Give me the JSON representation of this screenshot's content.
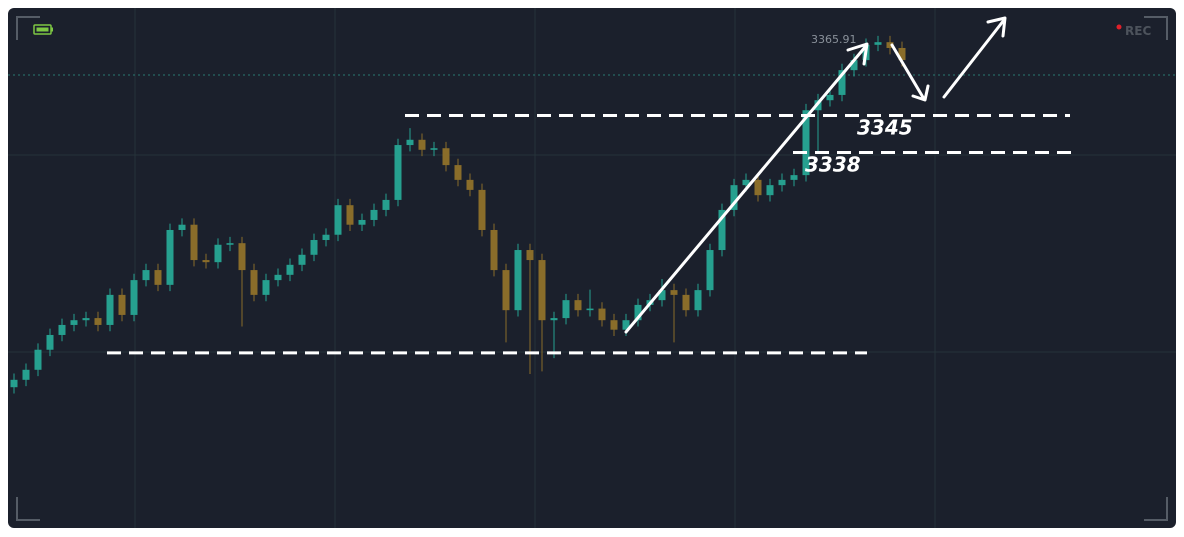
{
  "chart_data": {
    "type": "candlestick",
    "recording_label": "REC",
    "high_label": "3365.91",
    "up_color": "#26a08f",
    "down_color": "#8a6d2a",
    "ylim": [
      3267,
      3365
    ],
    "open": [
      3293.5,
      3294.9,
      3296.8,
      3300.6,
      3303.4,
      3305.3,
      3306.2,
      3306.6,
      3305.3,
      3311.0,
      3307.2,
      3313.8,
      3315.7,
      3312.9,
      3323.3,
      3324.3,
      3317.6,
      3317.2,
      3320.5,
      3320.8,
      3315.7,
      3311.0,
      3313.8,
      3314.8,
      3316.7,
      3318.6,
      3321.4,
      3322.4,
      3328.0,
      3324.3,
      3325.2,
      3327.1,
      3329.0,
      3339.4,
      3340.4,
      3338.5,
      3338.8,
      3335.6,
      3332.8,
      3330.9,
      3323.3,
      3315.7,
      3308.1,
      3319.5,
      3317.6,
      3306.2,
      3306.6,
      3310.0,
      3308.1,
      3308.4,
      3306.2,
      3304.4,
      3306.2,
      3309.1,
      3310.0,
      3311.9,
      3311.0,
      3308.1,
      3311.9,
      3319.5,
      3327.1,
      3331.8,
      3332.8,
      3329.9,
      3331.8,
      3332.8,
      3333.7,
      3346.0,
      3347.9,
      3348.9,
      3353.6,
      3355.5,
      3358.4,
      3358.9,
      3357.8
    ],
    "high": [
      3296.1,
      3298.0,
      3301.8,
      3304.6,
      3306.5,
      3307.4,
      3307.8,
      3307.8,
      3312.2,
      3312.2,
      3315.0,
      3316.9,
      3316.9,
      3324.5,
      3325.5,
      3325.5,
      3318.8,
      3321.7,
      3322.0,
      3322.0,
      3316.9,
      3315.0,
      3316.0,
      3317.9,
      3319.8,
      3322.6,
      3323.6,
      3329.2,
      3329.2,
      3326.4,
      3328.3,
      3330.2,
      3340.6,
      3342.6,
      3341.6,
      3340.0,
      3340.0,
      3336.8,
      3334.0,
      3332.1,
      3324.5,
      3316.9,
      3320.7,
      3320.7,
      3318.8,
      3307.8,
      3311.2,
      3311.2,
      3312.0,
      3309.6,
      3307.4,
      3307.4,
      3310.3,
      3311.2,
      3314.0,
      3313.1,
      3312.2,
      3313.1,
      3320.7,
      3328.3,
      3333.0,
      3334.0,
      3334.0,
      3333.0,
      3334.0,
      3334.9,
      3347.2,
      3349.1,
      3350.1,
      3354.8,
      3356.7,
      3359.6,
      3360.1,
      3360.1,
      3359.0
    ],
    "low": [
      3292.3,
      3293.7,
      3295.6,
      3299.4,
      3302.2,
      3304.1,
      3305.0,
      3304.1,
      3304.1,
      3306.0,
      3306.0,
      3312.6,
      3311.7,
      3311.7,
      3322.1,
      3316.4,
      3316.0,
      3316.0,
      3319.3,
      3305.0,
      3309.8,
      3309.8,
      3312.6,
      3313.6,
      3315.5,
      3317.4,
      3320.2,
      3321.2,
      3323.1,
      3323.1,
      3324.0,
      3325.9,
      3327.8,
      3338.2,
      3337.3,
      3337.3,
      3334.4,
      3331.6,
      3329.7,
      3322.1,
      3314.5,
      3302.0,
      3306.9,
      3296.0,
      3296.5,
      3299.0,
      3305.4,
      3306.9,
      3306.9,
      3305.0,
      3303.2,
      3303.2,
      3305.0,
      3307.9,
      3308.8,
      3302.0,
      3306.9,
      3306.9,
      3310.7,
      3318.3,
      3325.9,
      3330.6,
      3328.7,
      3328.7,
      3330.6,
      3331.6,
      3332.5,
      3338.0,
      3346.7,
      3347.7,
      3352.4,
      3354.3,
      3357.2,
      3356.6,
      3354.3
    ],
    "close": [
      3294.9,
      3296.8,
      3300.6,
      3303.4,
      3305.3,
      3306.2,
      3306.6,
      3305.3,
      3311.0,
      3307.2,
      3313.8,
      3315.7,
      3312.9,
      3323.3,
      3324.3,
      3317.6,
      3317.2,
      3320.5,
      3320.8,
      3315.7,
      3311.0,
      3313.8,
      3314.8,
      3316.7,
      3318.6,
      3321.4,
      3322.4,
      3328.0,
      3324.3,
      3325.2,
      3327.1,
      3329.0,
      3339.4,
      3340.4,
      3338.5,
      3338.8,
      3335.6,
      3332.8,
      3330.9,
      3323.3,
      3315.7,
      3308.1,
      3319.5,
      3317.6,
      3306.2,
      3306.6,
      3310.0,
      3308.1,
      3308.4,
      3306.2,
      3304.4,
      3306.2,
      3309.1,
      3310.0,
      3311.9,
      3311.0,
      3308.1,
      3311.9,
      3319.5,
      3327.1,
      3331.8,
      3332.8,
      3329.9,
      3331.8,
      3332.8,
      3333.7,
      3346.0,
      3347.9,
      3348.9,
      3353.6,
      3355.5,
      3358.4,
      3358.9,
      3357.8,
      3355.5
    ],
    "levels": [
      {
        "value": 3345,
        "label": "3345"
      },
      {
        "value": 3338,
        "label": "3338"
      },
      {
        "value": 3300
      }
    ]
  }
}
